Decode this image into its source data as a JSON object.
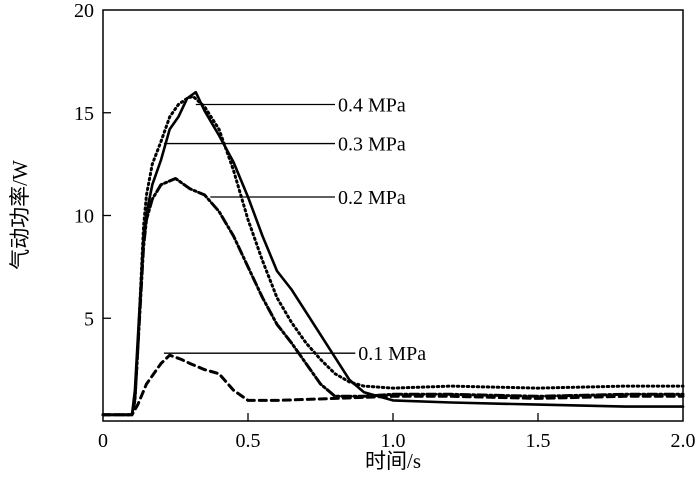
{
  "chart_data": {
    "type": "line",
    "title": "",
    "xlabel": "时间/s",
    "ylabel": "气动功率/W",
    "xlim": [
      0,
      2.0
    ],
    "ylim": [
      0,
      20
    ],
    "xticks": [
      0,
      0.5,
      1.0,
      1.5,
      2.0
    ],
    "xtick_labels": [
      "0",
      "0.5",
      "1.0",
      "1.5",
      "2.0"
    ],
    "yticks": [
      5,
      10,
      15,
      20
    ],
    "ytick_labels": [
      "5",
      "10",
      "15",
      "20"
    ],
    "grid": false,
    "series": [
      {
        "name": "0.4 MPa",
        "style": "solid",
        "x": [
          0,
          0.1,
          0.11,
          0.12,
          0.13,
          0.14,
          0.15,
          0.17,
          0.2,
          0.23,
          0.26,
          0.29,
          0.32,
          0.35,
          0.4,
          0.45,
          0.5,
          0.55,
          0.6,
          0.65,
          0.7,
          0.75,
          0.8,
          0.85,
          0.9,
          1.0,
          1.2,
          1.5,
          1.8,
          2.0
        ],
        "y": [
          0.3,
          0.3,
          1.5,
          4,
          6.5,
          9,
          10.1,
          11.5,
          12.7,
          14.2,
          14.8,
          15.7,
          16,
          15.1,
          13.9,
          12.6,
          10.9,
          9,
          7.3,
          6.4,
          5.3,
          4.2,
          3.1,
          2,
          1.4,
          1.0,
          0.9,
          0.8,
          0.7,
          0.7
        ]
      },
      {
        "name": "0.3 MPa",
        "style": "dotted",
        "x": [
          0,
          0.1,
          0.11,
          0.12,
          0.13,
          0.14,
          0.15,
          0.17,
          0.2,
          0.23,
          0.26,
          0.29,
          0.31,
          0.35,
          0.4,
          0.45,
          0.5,
          0.55,
          0.6,
          0.65,
          0.7,
          0.75,
          0.8,
          0.85,
          0.9,
          1.0,
          1.2,
          1.5,
          1.8,
          2.0
        ],
        "y": [
          0.3,
          0.3,
          1,
          3.5,
          6.5,
          9.5,
          11,
          12.5,
          13.6,
          14.8,
          15.4,
          15.7,
          15.8,
          15.3,
          14.2,
          12.2,
          9.8,
          7.8,
          6,
          4.8,
          3.8,
          3,
          2.3,
          1.9,
          1.7,
          1.6,
          1.7,
          1.6,
          1.7,
          1.7
        ]
      },
      {
        "name": "0.2 MPa",
        "style": "dashdot",
        "x": [
          0,
          0.1,
          0.11,
          0.12,
          0.13,
          0.14,
          0.15,
          0.17,
          0.2,
          0.25,
          0.3,
          0.35,
          0.4,
          0.45,
          0.5,
          0.55,
          0.6,
          0.65,
          0.7,
          0.75,
          0.8,
          0.9,
          1.0,
          1.2,
          1.5,
          1.8,
          2.0
        ],
        "y": [
          0.3,
          0.3,
          1,
          3.5,
          6,
          8.5,
          9.8,
          10.8,
          11.5,
          11.8,
          11.3,
          11,
          10.2,
          9,
          7.5,
          6,
          4.7,
          3.8,
          2.8,
          1.8,
          1.2,
          1.2,
          1.3,
          1.3,
          1.2,
          1.3,
          1.3
        ]
      },
      {
        "name": "0.1 MPa",
        "style": "dashed",
        "x": [
          0,
          0.1,
          0.12,
          0.15,
          0.2,
          0.23,
          0.27,
          0.3,
          0.35,
          0.4,
          0.45,
          0.5,
          0.6,
          0.8,
          1.0,
          1.2,
          1.5,
          1.8,
          2.0
        ],
        "y": [
          0.3,
          0.3,
          0.8,
          1.8,
          2.8,
          3.2,
          3.0,
          2.8,
          2.5,
          2.3,
          1.5,
          1.0,
          1.0,
          1.1,
          1.2,
          1.2,
          1.1,
          1.2,
          1.2
        ]
      }
    ],
    "annotations": [
      {
        "text": "0.4 MPa",
        "x_from": 0.32,
        "x_to": 0.8,
        "y": 15.4
      },
      {
        "text": "0.3 MPa",
        "x_from": 0.21,
        "x_to": 0.8,
        "y": 13.5
      },
      {
        "text": "0.2 MPa",
        "x_from": 0.37,
        "x_to": 0.8,
        "y": 10.9
      },
      {
        "text": "0.1 MPa",
        "x_from": 0.21,
        "x_to": 0.87,
        "y": 3.3
      }
    ],
    "legend": "none"
  }
}
